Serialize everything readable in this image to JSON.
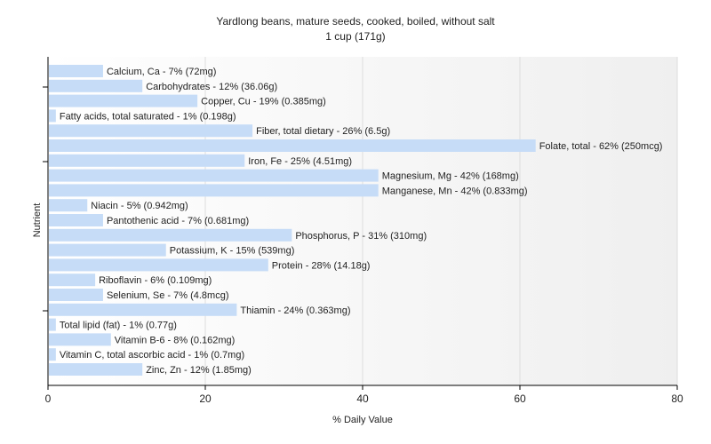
{
  "chart_data": {
    "type": "bar",
    "orientation": "horizontal",
    "title": "Yardlong beans, mature seeds, cooked, boiled, without salt",
    "subtitle": "1 cup (171g)",
    "xlabel": "% Daily Value",
    "ylabel": "Nutrient",
    "xlim": [
      0,
      80
    ],
    "xticks": [
      0,
      20,
      40,
      60,
      80
    ],
    "grid": true,
    "bar_color": "#c6dcf7",
    "categories": [
      "Calcium, Ca",
      "Carbohydrates",
      "Copper, Cu",
      "Fatty acids, total saturated",
      "Fiber, total dietary",
      "Folate, total",
      "Iron, Fe",
      "Magnesium, Mg",
      "Manganese, Mn",
      "Niacin",
      "Pantothenic acid",
      "Phosphorus, P",
      "Potassium, K",
      "Protein",
      "Riboflavin",
      "Selenium, Se",
      "Thiamin",
      "Total lipid (fat)",
      "Vitamin B-6",
      "Vitamin C, total ascorbic acid",
      "Zinc, Zn"
    ],
    "values": [
      7,
      12,
      19,
      1,
      26,
      62,
      25,
      42,
      42,
      5,
      7,
      31,
      15,
      28,
      6,
      7,
      24,
      1,
      8,
      1,
      12
    ],
    "labels": [
      "Calcium, Ca - 7% (72mg)",
      "Carbohydrates - 12% (36.06g)",
      "Copper, Cu - 19% (0.385mg)",
      "Fatty acids, total saturated - 1% (0.198g)",
      "Fiber, total dietary - 26% (6.5g)",
      "Folate, total - 62% (250mcg)",
      "Iron, Fe - 25% (4.51mg)",
      "Magnesium, Mg - 42% (168mg)",
      "Manganese, Mn - 42% (0.833mg)",
      "Niacin - 5% (0.942mg)",
      "Pantothenic acid - 7% (0.681mg)",
      "Phosphorus, P - 31% (310mg)",
      "Potassium, K - 15% (539mg)",
      "Protein - 28% (14.18g)",
      "Riboflavin - 6% (0.109mg)",
      "Selenium, Se - 7% (4.8mcg)",
      "Thiamin - 24% (0.363mg)",
      "Total lipid (fat) - 1% (0.77g)",
      "Vitamin B-6 - 8% (0.162mg)",
      "Vitamin C, total ascorbic acid - 1% (0.7mg)",
      "Zinc, Zn - 12% (1.85mg)"
    ]
  }
}
